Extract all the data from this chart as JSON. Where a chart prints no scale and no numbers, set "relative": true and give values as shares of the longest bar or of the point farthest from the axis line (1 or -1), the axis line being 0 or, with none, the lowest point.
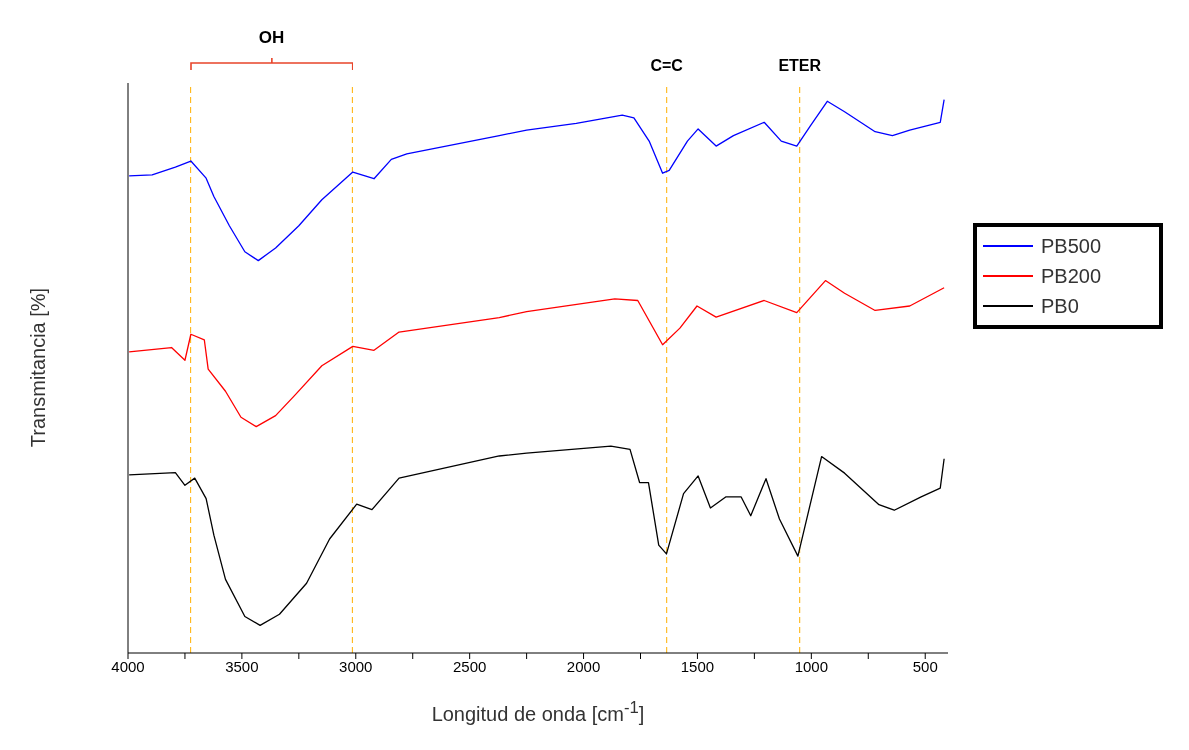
{
  "chart_data": {
    "type": "line",
    "relative": true,
    "xlabel": "Longitud de onda [cm$^{-1}$]",
    "ylabel": "Transmitancia [%]",
    "xlim": [
      4000,
      400
    ],
    "xticks": [
      4000,
      {
        "value": 3750,
        "label": null
      },
      3500,
      {
        "value": 3250,
        "label": null
      },
      3000,
      {
        "value": 2750,
        "label": null
      },
      2500,
      {
        "value": 2250,
        "label": null
      },
      2000,
      {
        "value": 1750,
        "label": null
      },
      1500,
      {
        "value": 1250,
        "label": null
      },
      1000,
      {
        "value": 750,
        "label": null
      },
      500
    ],
    "legend": "right",
    "grid": false,
    "marker": "none",
    "line_style": "solid",
    "annotations": [
      "OH"
    ],
    "ref_lines": [
      {
        "axis": "x",
        "value": 3725,
        "label": null,
        "color": "#ffb000",
        "line_style": "dashed"
      },
      {
        "axis": "x",
        "value": 3015,
        "label": null,
        "color": "#ffb000",
        "line_style": "dashed"
      },
      {
        "axis": "x",
        "value": 1635,
        "label": "C=C",
        "color": "#ffb000",
        "line_style": "dashed"
      },
      {
        "axis": "x",
        "value": 1051,
        "label": "ETER",
        "color": "#ffb000",
        "line_style": "dashed"
      }
    ],
    "series": [
      {
        "name": "PB500",
        "color": "#0000ff",
        "x": [
          3995,
          3894,
          3792,
          3724,
          3657,
          3623,
          3555,
          3487,
          3428,
          3352,
          3250,
          3149,
          3013,
          2920,
          2844,
          2776,
          2370,
          2250,
          2032,
          1830,
          1779,
          1712,
          1653,
          1624,
          1544,
          1497,
          1418,
          1342,
          1207,
          1132,
          1064,
          1005,
          930,
          854,
          720,
          644,
          568,
          434,
          417
        ],
        "values": [
          0.862,
          0.864,
          0.878,
          0.889,
          0.858,
          0.825,
          0.772,
          0.725,
          0.709,
          0.732,
          0.772,
          0.819,
          0.869,
          0.857,
          0.892,
          0.902,
          0.935,
          0.945,
          0.957,
          0.972,
          0.967,
          0.925,
          0.867,
          0.872,
          0.925,
          0.947,
          0.916,
          0.935,
          0.959,
          0.925,
          0.916,
          0.952,
          0.997,
          0.978,
          0.942,
          0.935,
          0.945,
          0.959,
          1.0
        ]
      },
      {
        "name": "PB200",
        "color": "#ff0000",
        "x": [
          3995,
          3809,
          3750,
          3724,
          3665,
          3648,
          3572,
          3504,
          3437,
          3352,
          3267,
          3149,
          3013,
          2920,
          2810,
          2370,
          2250,
          1863,
          1762,
          1653,
          1577,
          1502,
          1418,
          1207,
          1064,
          938,
          854,
          720,
          568,
          417
        ],
        "values": [
          0.544,
          0.552,
          0.529,
          0.576,
          0.566,
          0.513,
          0.473,
          0.426,
          0.409,
          0.429,
          0.466,
          0.519,
          0.554,
          0.547,
          0.58,
          0.606,
          0.617,
          0.64,
          0.637,
          0.557,
          0.587,
          0.627,
          0.607,
          0.637,
          0.615,
          0.673,
          0.65,
          0.619,
          0.627,
          0.66
        ]
      },
      {
        "name": "PB0",
        "color": "#000000",
        "x": [
          3995,
          3792,
          3750,
          3707,
          3657,
          3623,
          3572,
          3487,
          3420,
          3335,
          3216,
          3115,
          2996,
          2929,
          2810,
          2370,
          2250,
          1880,
          1796,
          1754,
          1715,
          1670,
          1636,
          1561,
          1497,
          1443,
          1376,
          1308,
          1266,
          1199,
          1140,
          1059,
          955,
          854,
          703,
          636,
          518,
          434,
          417
        ],
        "values": [
          0.322,
          0.326,
          0.303,
          0.316,
          0.279,
          0.213,
          0.133,
          0.066,
          0.05,
          0.07,
          0.126,
          0.206,
          0.269,
          0.259,
          0.316,
          0.356,
          0.361,
          0.374,
          0.368,
          0.308,
          0.308,
          0.195,
          0.179,
          0.288,
          0.32,
          0.262,
          0.282,
          0.282,
          0.248,
          0.315,
          0.242,
          0.175,
          0.355,
          0.325,
          0.268,
          0.258,
          0.282,
          0.298,
          0.351
        ]
      }
    ]
  }
}
